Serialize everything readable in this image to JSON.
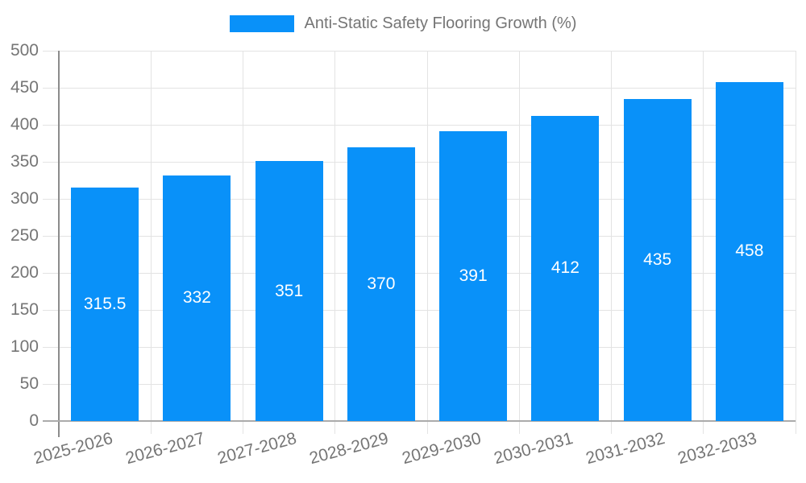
{
  "chart_data": {
    "type": "bar",
    "legend_label": "Anti-Static Safety Flooring Growth (%)",
    "categories": [
      "2025-2026",
      "2026-2027",
      "2027-2028",
      "2028-2029",
      "2029-2030",
      "2030-2031",
      "2031-2032",
      "2032-2033"
    ],
    "values": [
      315.5,
      332,
      351,
      370,
      391,
      412,
      435,
      458
    ],
    "value_labels": [
      "315.5",
      "332",
      "351",
      "370",
      "391",
      "412",
      "435",
      "458"
    ],
    "xlabel": "",
    "ylabel": "",
    "ylim": [
      0,
      500
    ],
    "yticks": [
      0,
      50,
      100,
      150,
      200,
      250,
      300,
      350,
      400,
      450,
      500
    ],
    "grid": true,
    "legend_position": "top-center",
    "x_label_rotation_deg": -15,
    "colors": {
      "bar": "#0991f9",
      "grid_line": "#e3e3e3",
      "y_axis_line": "#8c8c8c",
      "x_axis_line": "#ababab",
      "tick_label": "#757575",
      "legend_text": "#757575",
      "value_label": "#ffffff",
      "background": "#ffffff"
    }
  }
}
